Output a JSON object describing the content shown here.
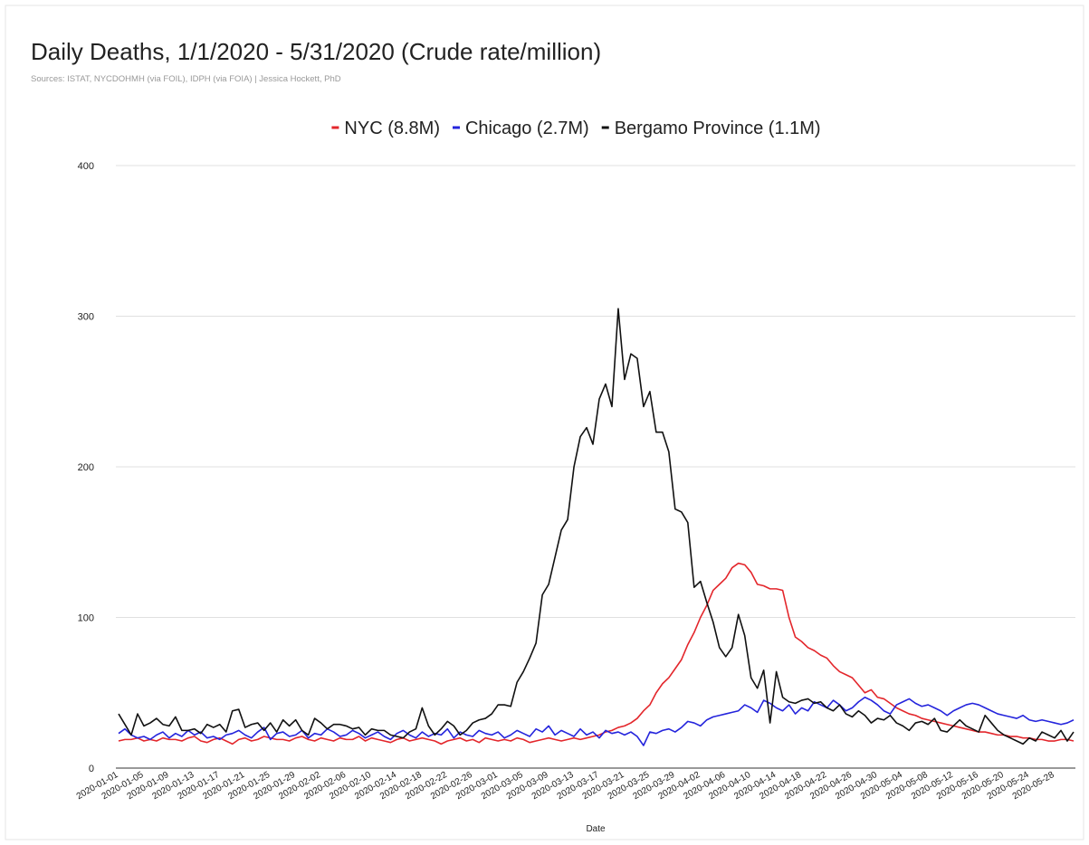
{
  "chart_data": {
    "type": "line",
    "title": "Daily Deaths, 1/1/2020 - 5/31/2020 (Crude rate/million)",
    "subtitle": "Sources: ISTAT, NYCDOHMH (via FOIL), IDPH (via FOIA) | Jessica Hockett, PhD",
    "x_label": "Date",
    "legend_position": "top",
    "grid": true,
    "ylim": [
      0,
      400
    ],
    "yticks": [
      0,
      100,
      200,
      300,
      400
    ],
    "categories": [
      "2020-01-01",
      null,
      null,
      null,
      "2020-01-05",
      null,
      null,
      null,
      "2020-01-09",
      null,
      null,
      null,
      "2020-01-13",
      null,
      null,
      null,
      "2020-01-17",
      null,
      null,
      null,
      "2020-01-21",
      null,
      null,
      null,
      "2020-01-25",
      null,
      null,
      null,
      "2020-01-29",
      null,
      null,
      null,
      "2020-02-02",
      null,
      null,
      null,
      "2020-02-06",
      null,
      null,
      null,
      "2020-02-10",
      null,
      null,
      null,
      "2020-02-14",
      null,
      null,
      null,
      "2020-02-18",
      null,
      null,
      null,
      "2020-02-22",
      null,
      null,
      null,
      "2020-02-26",
      null,
      null,
      null,
      "2020-03-01",
      null,
      null,
      null,
      "2020-03-05",
      null,
      null,
      null,
      "2020-03-09",
      null,
      null,
      null,
      "2020-03-13",
      null,
      null,
      null,
      "2020-03-17",
      null,
      null,
      null,
      "2020-03-21",
      null,
      null,
      null,
      "2020-03-25",
      null,
      null,
      null,
      "2020-03-29",
      null,
      null,
      null,
      "2020-04-02",
      null,
      null,
      null,
      "2020-04-06",
      null,
      null,
      null,
      "2020-04-10",
      null,
      null,
      null,
      "2020-04-14",
      null,
      null,
      null,
      "2020-04-18",
      null,
      null,
      null,
      "2020-04-22",
      null,
      null,
      null,
      "2020-04-26",
      null,
      null,
      null,
      "2020-04-30",
      null,
      null,
      null,
      "2020-05-04",
      null,
      null,
      null,
      "2020-05-08",
      null,
      null,
      null,
      "2020-05-12",
      null,
      null,
      null,
      "2020-05-16",
      null,
      null,
      null,
      "2020-05-20",
      null,
      null,
      null,
      "2020-05-24",
      null,
      null,
      null,
      "2020-05-28",
      null,
      null,
      null
    ],
    "series": [
      {
        "name": "NYC (8.8M)",
        "color": "#e3262b",
        "values": [
          18,
          19,
          19,
          20,
          18,
          19,
          18,
          20,
          19,
          19,
          18,
          20,
          21,
          18,
          17,
          19,
          20,
          18,
          16,
          19,
          20,
          18,
          19,
          21,
          20,
          19,
          19,
          18,
          20,
          21,
          19,
          18,
          20,
          19,
          18,
          20,
          19,
          19,
          21,
          18,
          20,
          19,
          18,
          17,
          19,
          20,
          18,
          19,
          20,
          19,
          18,
          16,
          18,
          19,
          20,
          18,
          19,
          17,
          20,
          19,
          18,
          19,
          18,
          20,
          19,
          17,
          18,
          19,
          20,
          19,
          18,
          19,
          20,
          19,
          20,
          21,
          22,
          24,
          25,
          27,
          28,
          30,
          33,
          38,
          42,
          50,
          56,
          60,
          66,
          72,
          82,
          90,
          100,
          108,
          118,
          122,
          126,
          133,
          136,
          135,
          130,
          122,
          121,
          119,
          119,
          118,
          100,
          87,
          84,
          80,
          78,
          75,
          73,
          68,
          64,
          62,
          60,
          55,
          50,
          52,
          47,
          46,
          43,
          40,
          38,
          36,
          35,
          33,
          32,
          31,
          30,
          29,
          28,
          27,
          26,
          25,
          24,
          24,
          23,
          22,
          22,
          21,
          21,
          20,
          20,
          19,
          19,
          18,
          18,
          19,
          19,
          18
        ]
      },
      {
        "name": "Chicago (2.7M)",
        "color": "#2424dc",
        "values": [
          23,
          26,
          22,
          20,
          21,
          19,
          22,
          24,
          20,
          23,
          21,
          25,
          22,
          24,
          20,
          21,
          19,
          22,
          23,
          25,
          22,
          20,
          24,
          27,
          19,
          23,
          24,
          21,
          22,
          25,
          20,
          23,
          22,
          26,
          24,
          21,
          22,
          25,
          23,
          20,
          22,
          24,
          21,
          19,
          23,
          25,
          22,
          20,
          24,
          21,
          23,
          22,
          26,
          20,
          24,
          22,
          21,
          25,
          23,
          22,
          24,
          20,
          22,
          25,
          23,
          21,
          26,
          24,
          28,
          22,
          25,
          23,
          21,
          26,
          22,
          24,
          20,
          25,
          23,
          24,
          22,
          24,
          21,
          15,
          24,
          23,
          25,
          26,
          24,
          27,
          31,
          30,
          28,
          32,
          34,
          35,
          36,
          37,
          38,
          42,
          40,
          37,
          45,
          43,
          40,
          38,
          42,
          36,
          40,
          38,
          44,
          42,
          40,
          45,
          42,
          38,
          40,
          44,
          47,
          45,
          42,
          38,
          36,
          42,
          44,
          46,
          43,
          41,
          42,
          40,
          38,
          35,
          38,
          40,
          42,
          43,
          42,
          40,
          38,
          36,
          35,
          34,
          33,
          35,
          32,
          31,
          32,
          31,
          30,
          29,
          30,
          32
        ]
      },
      {
        "name": "Bergamo Province (1.1M)",
        "color": "#111111",
        "values": [
          36,
          29,
          22,
          36,
          28,
          30,
          33,
          29,
          28,
          34,
          25,
          25,
          26,
          23,
          29,
          27,
          29,
          24,
          38,
          39,
          27,
          29,
          30,
          25,
          30,
          24,
          32,
          28,
          32,
          25,
          22,
          33,
          30,
          26,
          29,
          29,
          28,
          26,
          27,
          22,
          26,
          25,
          25,
          22,
          21,
          20,
          24,
          26,
          40,
          28,
          22,
          26,
          31,
          28,
          22,
          25,
          30,
          32,
          33,
          36,
          42,
          42,
          41,
          57,
          64,
          73,
          83,
          115,
          122,
          140,
          158,
          165,
          200,
          220,
          226,
          215,
          245,
          255,
          240,
          305,
          258,
          275,
          272,
          240,
          250,
          223,
          223,
          210,
          172,
          170,
          163,
          120,
          124,
          110,
          97,
          80,
          74,
          80,
          102,
          88,
          60,
          53,
          65,
          30,
          64,
          47,
          44,
          43,
          45,
          46,
          43,
          44,
          40,
          38,
          42,
          36,
          34,
          38,
          35,
          30,
          33,
          32,
          35,
          30,
          28,
          25,
          30,
          31,
          29,
          33,
          25,
          24,
          28,
          32,
          28,
          26,
          24,
          35,
          30,
          25,
          22,
          20,
          18,
          16,
          20,
          18,
          24,
          22,
          20,
          25,
          18,
          24
        ]
      }
    ]
  }
}
